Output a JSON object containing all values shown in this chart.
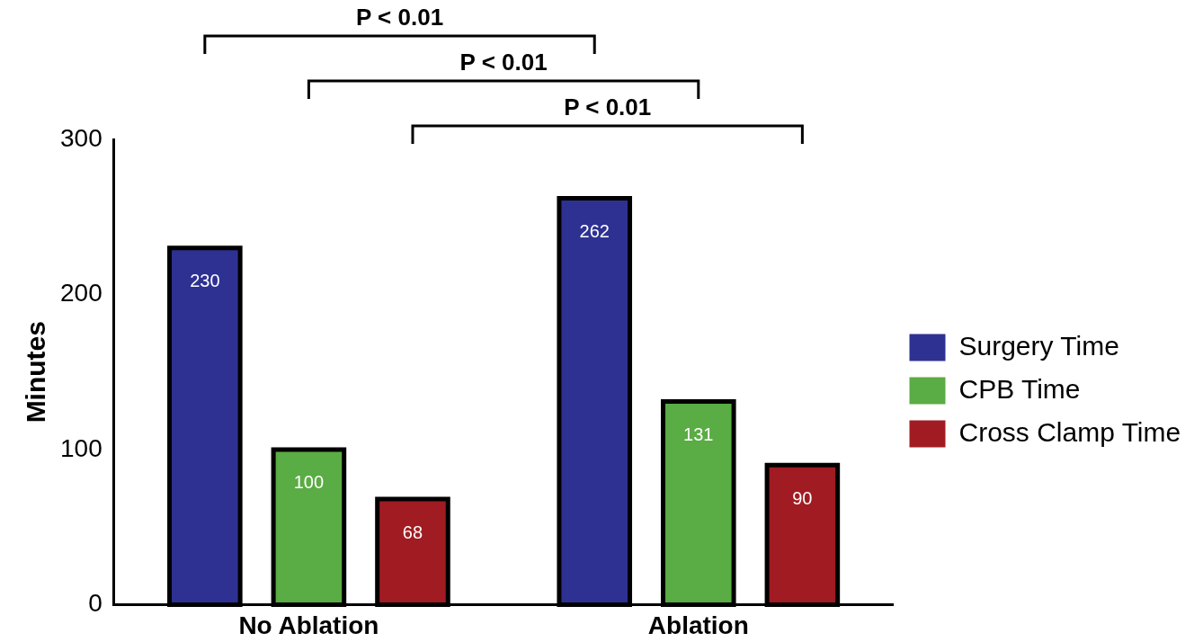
{
  "chart_data": {
    "type": "bar",
    "ylabel": "Minutes",
    "categories": [
      "No Ablation",
      "Ablation"
    ],
    "series": [
      {
        "name": "Surgery Time",
        "color": "#2e3192",
        "values": [
          230,
          262
        ]
      },
      {
        "name": "CPB Time",
        "color": "#5aac44",
        "values": [
          100,
          131
        ]
      },
      {
        "name": "Cross Clamp Time",
        "color": "#a01c22",
        "values": [
          68,
          90
        ]
      }
    ],
    "ylim": [
      0,
      300
    ],
    "yticks": [
      0,
      100,
      200,
      300
    ],
    "grid": false,
    "legend": "right",
    "data_labels": true,
    "annotations": [
      "P < 0.01",
      "P < 0.01",
      "P < 0.01"
    ]
  }
}
